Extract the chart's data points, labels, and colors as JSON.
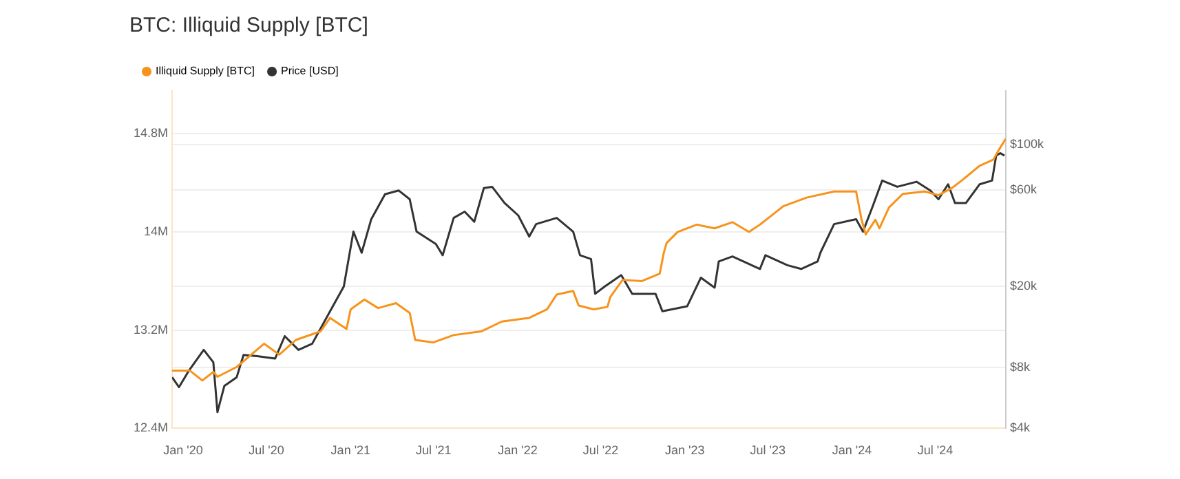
{
  "chart_data": {
    "type": "line",
    "title": "BTC: Illiquid Supply [BTC]",
    "legend": "top left",
    "marker": "none",
    "grid": "y",
    "log": "y2",
    "xlim": [
      "2019-12-08",
      "2024-12-02"
    ],
    "xticks": [
      {
        "value": "2020-01-01",
        "label": "Jan '20"
      },
      {
        "value": "2020-07-01",
        "label": "Jul '20"
      },
      {
        "value": "2021-01-01",
        "label": "Jan '21"
      },
      {
        "value": "2021-07-01",
        "label": "Jul '21"
      },
      {
        "value": "2022-01-01",
        "label": "Jan '22"
      },
      {
        "value": "2022-07-01",
        "label": "Jul '22"
      },
      {
        "value": "2023-01-01",
        "label": "Jan '23"
      },
      {
        "value": "2023-07-01",
        "label": "Jul '23"
      },
      {
        "value": "2024-01-01",
        "label": "Jan '24"
      },
      {
        "value": "2024-07-01",
        "label": "Jul '24"
      }
    ],
    "ylim": [
      12400000,
      15150000
    ],
    "yticks": [
      {
        "value": 12400000,
        "label": "12.4M"
      },
      {
        "value": 13200000,
        "label": "13.2M"
      },
      {
        "value": 14000000,
        "label": "14M"
      },
      {
        "value": 14800000,
        "label": "14.8M"
      }
    ],
    "y2lim": [
      4000,
      184000
    ],
    "y2ticks": [
      {
        "value": 4000,
        "label": "$4k"
      },
      {
        "value": 8000,
        "label": "$8k"
      },
      {
        "value": 20000,
        "label": "$20k"
      },
      {
        "value": 60000,
        "label": "$60k"
      },
      {
        "value": 100000,
        "label": "$100k"
      }
    ],
    "series": [
      {
        "name": "Illiquid Supply [BTC]",
        "color": "#f7931a",
        "x": [
          "2019-12-08",
          "2020-01-16",
          "2020-02-12",
          "2020-03-07",
          "2020-03-16",
          "2020-04-27",
          "2020-06-26",
          "2020-07-29",
          "2020-09-03",
          "2020-10-27",
          "2020-11-17",
          "2020-12-23",
          "2021-01-01",
          "2021-01-31",
          "2021-03-02",
          "2021-04-10",
          "2021-05-10",
          "2021-05-22",
          "2021-06-30",
          "2021-08-14",
          "2021-10-13",
          "2021-11-27",
          "2022-01-26",
          "2022-03-06",
          "2022-03-27",
          "2022-05-02",
          "2022-05-14",
          "2022-06-16",
          "2022-07-16",
          "2022-07-22",
          "2022-08-18",
          "2022-09-29",
          "2022-11-07",
          "2022-11-16",
          "2022-11-22",
          "2022-12-16",
          "2023-01-27",
          "2023-03-07",
          "2023-04-15",
          "2023-05-21",
          "2023-06-14",
          "2023-08-04",
          "2023-09-24",
          "2023-11-23",
          "2024-01-10",
          "2024-01-22",
          "2024-01-31",
          "2024-02-21",
          "2024-03-01",
          "2024-03-22",
          "2024-04-21",
          "2024-06-08",
          "2024-07-08",
          "2024-08-07",
          "2024-08-28",
          "2024-10-06",
          "2024-11-05",
          "2024-11-17",
          "2024-12-02"
        ],
        "values": [
          12870000,
          12870000,
          12790000,
          12860000,
          12820000,
          12900000,
          13090000,
          13000000,
          13120000,
          13190000,
          13300000,
          13210000,
          13370000,
          13450000,
          13380000,
          13420000,
          13340000,
          13120000,
          13100000,
          13160000,
          13190000,
          13270000,
          13300000,
          13370000,
          13490000,
          13520000,
          13400000,
          13370000,
          13390000,
          13470000,
          13610000,
          13600000,
          13660000,
          13830000,
          13910000,
          14000000,
          14060000,
          14030000,
          14080000,
          14000000,
          14060000,
          14210000,
          14280000,
          14330000,
          14330000,
          14100000,
          13980000,
          14100000,
          14030000,
          14200000,
          14310000,
          14330000,
          14300000,
          14360000,
          14420000,
          14540000,
          14590000,
          14670000,
          14760000
        ]
      },
      {
        "name": "Price [USD]",
        "color": "#333333",
        "axis": "y2",
        "x": [
          "2019-12-08",
          "2019-12-23",
          "2020-01-13",
          "2020-02-15",
          "2020-03-07",
          "2020-03-16",
          "2020-03-31",
          "2020-04-27",
          "2020-05-12",
          "2020-06-11",
          "2020-07-20",
          "2020-08-10",
          "2020-09-09",
          "2020-10-09",
          "2020-11-17",
          "2020-12-17",
          "2021-01-07",
          "2021-01-25",
          "2021-02-15",
          "2021-03-17",
          "2021-04-16",
          "2021-05-10",
          "2021-05-25",
          "2021-07-06",
          "2021-07-21",
          "2021-08-14",
          "2021-09-07",
          "2021-09-28",
          "2021-10-19",
          "2021-11-06",
          "2021-12-03",
          "2022-01-02",
          "2022-01-26",
          "2022-02-10",
          "2022-03-27",
          "2022-05-02",
          "2022-05-17",
          "2022-06-10",
          "2022-06-19",
          "2022-07-10",
          "2022-08-15",
          "2022-09-08",
          "2022-10-29",
          "2022-11-13",
          "2023-01-06",
          "2023-02-05",
          "2023-03-07",
          "2023-03-16",
          "2023-04-15",
          "2023-06-14",
          "2023-06-26",
          "2023-08-13",
          "2023-09-12",
          "2023-10-18",
          "2023-10-24",
          "2023-11-23",
          "2024-01-10",
          "2024-01-25",
          "2024-02-15",
          "2024-03-07",
          "2024-04-09",
          "2024-05-21",
          "2024-06-20",
          "2024-07-08",
          "2024-07-29",
          "2024-08-13",
          "2024-09-06",
          "2024-10-06",
          "2024-11-02",
          "2024-11-11",
          "2024-11-20",
          "2024-11-29"
        ],
        "values": [
          7140,
          6380,
          7660,
          9740,
          8460,
          4810,
          6470,
          7140,
          9200,
          9070,
          8830,
          11380,
          9740,
          10450,
          15090,
          20010,
          37250,
          29320,
          42920,
          56930,
          59400,
          53800,
          37250,
          32370,
          28510,
          43530,
          46730,
          41710,
          61100,
          61970,
          51560,
          44780,
          35230,
          40570,
          43530,
          37250,
          28510,
          27310,
          18400,
          20010,
          22730,
          18400,
          18400,
          15090,
          15970,
          22100,
          19740,
          26560,
          28100,
          24400,
          28510,
          25460,
          24400,
          26560,
          29320,
          40570,
          42920,
          37250,
          49450,
          66520,
          61970,
          65600,
          59400,
          53800,
          63770,
          51560,
          51560,
          63770,
          66520,
          88250,
          90790,
          88250
        ]
      }
    ]
  }
}
